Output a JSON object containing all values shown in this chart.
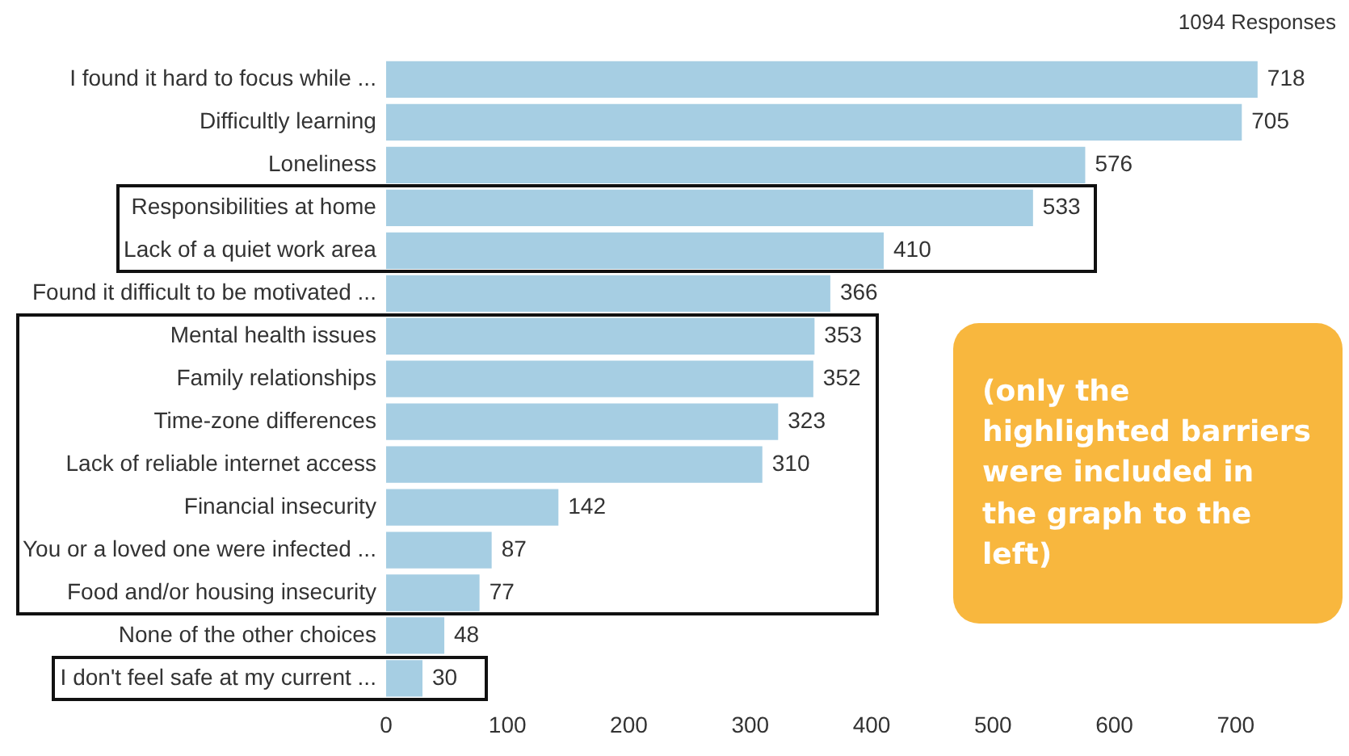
{
  "chart_data": {
    "type": "bar",
    "orientation": "horizontal",
    "categories": [
      "I found it hard to focus while ...",
      "Difficultly learning",
      "Loneliness",
      "Responsibilities at home",
      "Lack of a quiet work area",
      "Found it difficult to be motivated ...",
      "Mental health issues",
      "Family relationships",
      "Time-zone differences",
      "Lack of reliable internet access",
      "Financial insecurity",
      "You or a loved one were infected ...",
      "Food and/or housing insecurity",
      "None of the other choices",
      "I don't feel safe at my current ..."
    ],
    "values": [
      718,
      705,
      576,
      533,
      410,
      366,
      353,
      352,
      323,
      310,
      142,
      87,
      77,
      48,
      30
    ],
    "color": "#a6cee3",
    "data_labels": true,
    "grid": false,
    "legend": false,
    "xlim": [
      0,
      780
    ],
    "xticks": [
      0,
      100,
      200,
      300,
      400,
      500,
      600,
      700
    ],
    "annotations": [
      "1094 Responses",
      "(only the highlighted barriers were included in the graph to the left)"
    ]
  }
}
